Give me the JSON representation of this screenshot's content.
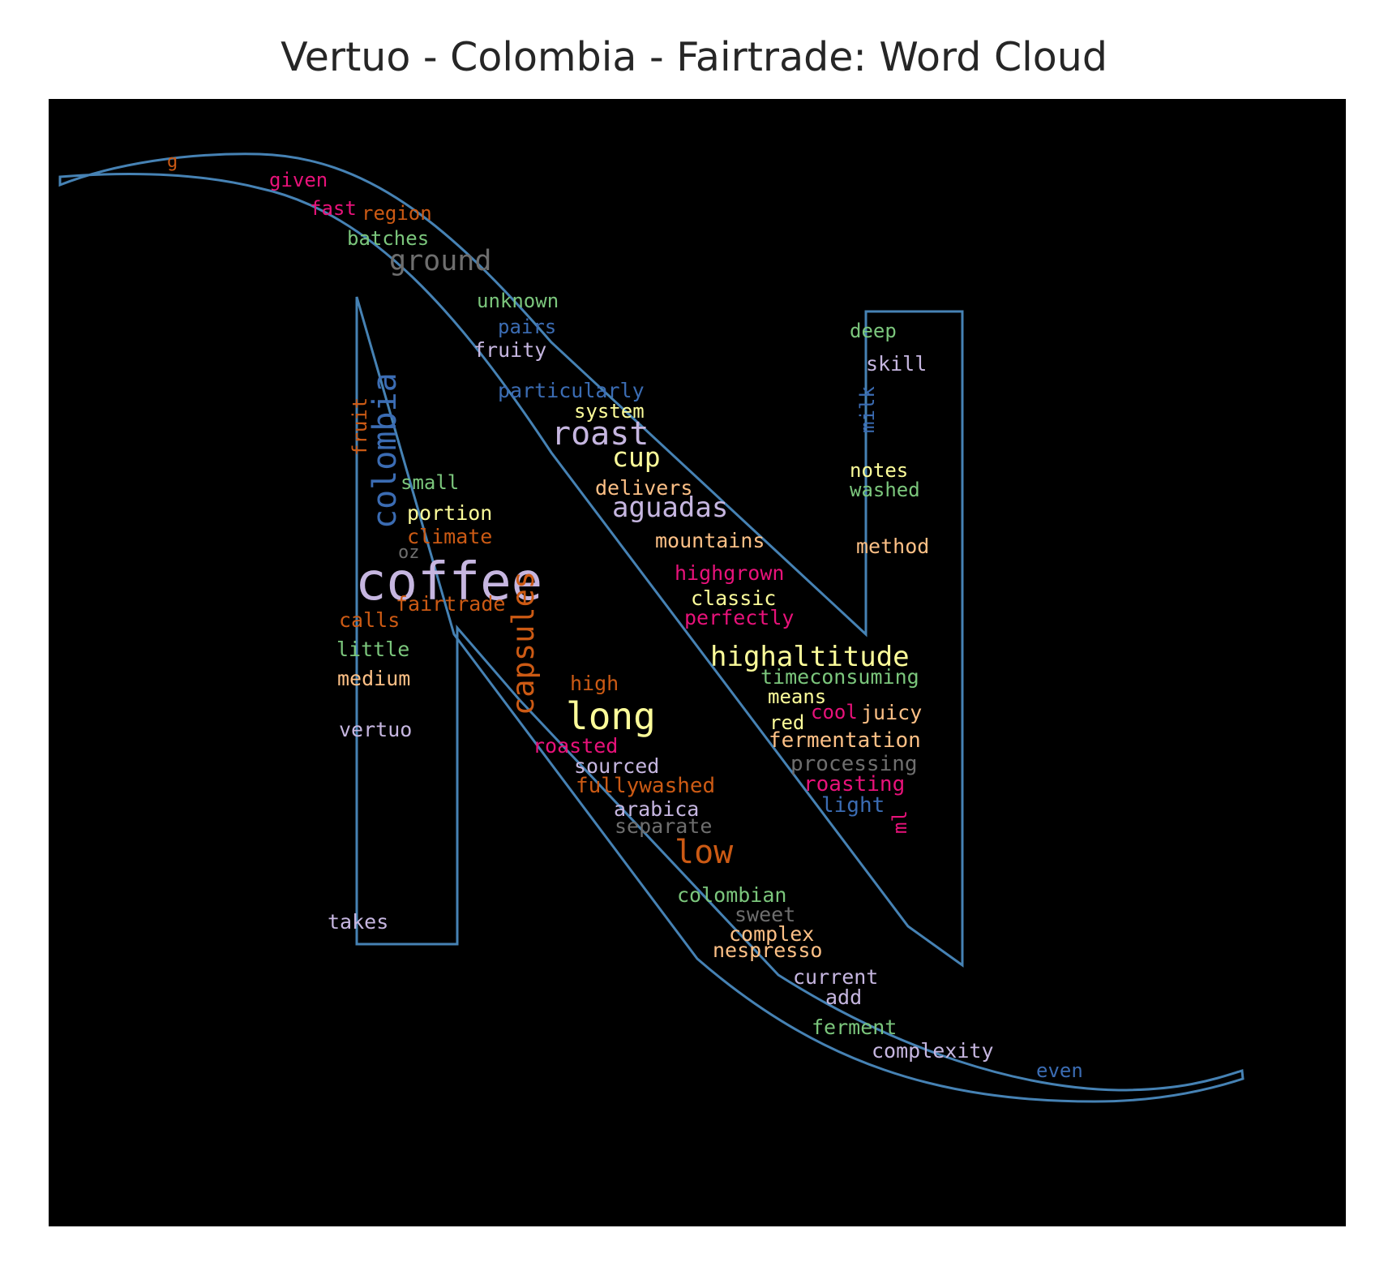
{
  "title": "Vertuo - Colombia - Fairtrade: Word Cloud",
  "colors": {
    "background": "#000000",
    "outline": "#4682b4",
    "palette": {
      "orange": "#cc5a14",
      "pink": "#e8127a",
      "green": "#7bc67c",
      "gray": "#6e6e6e",
      "blue": "#3b6cb3",
      "lavender": "#c6b6e0",
      "yellow": "#fdfd9a",
      "peach": "#fdc086"
    }
  },
  "words": [
    {
      "text": "g",
      "color": "orange",
      "size": 22
    },
    {
      "text": "given",
      "color": "pink",
      "size": 24
    },
    {
      "text": "fast",
      "color": "pink",
      "size": 24
    },
    {
      "text": "region",
      "color": "orange",
      "size": 24
    },
    {
      "text": "batches",
      "color": "green",
      "size": 24
    },
    {
      "text": "ground",
      "color": "gray",
      "size": 35
    },
    {
      "text": "unknown",
      "color": "green",
      "size": 24
    },
    {
      "text": "pairs",
      "color": "blue",
      "size": 24
    },
    {
      "text": "fruity",
      "color": "lavender",
      "size": 25
    },
    {
      "text": "particularly",
      "color": "blue",
      "size": 25
    },
    {
      "text": "system",
      "color": "yellow",
      "size": 24
    },
    {
      "text": "roast",
      "color": "lavender",
      "size": 40
    },
    {
      "text": "cup",
      "color": "yellow",
      "size": 33
    },
    {
      "text": "delivers",
      "color": "peach",
      "size": 25
    },
    {
      "text": "aguadas",
      "color": "lavender",
      "size": 34
    },
    {
      "text": "mountains",
      "color": "peach",
      "size": 25
    },
    {
      "text": "highgrown",
      "color": "pink",
      "size": 25
    },
    {
      "text": "classic",
      "color": "yellow",
      "size": 25
    },
    {
      "text": "perfectly",
      "color": "pink",
      "size": 25
    },
    {
      "text": "highaltitude",
      "color": "yellow",
      "size": 34
    },
    {
      "text": "timeconsuming",
      "color": "green",
      "size": 25
    },
    {
      "text": "means",
      "color": "yellow",
      "size": 24
    },
    {
      "text": "cool",
      "color": "pink",
      "size": 24
    },
    {
      "text": "juicy",
      "color": "peach",
      "size": 25
    },
    {
      "text": "red",
      "color": "yellow",
      "size": 24
    },
    {
      "text": "fermentation",
      "color": "peach",
      "size": 26
    },
    {
      "text": "processing",
      "color": "gray",
      "size": 26
    },
    {
      "text": "roasting",
      "color": "pink",
      "size": 26
    },
    {
      "text": "light",
      "color": "blue",
      "size": 26
    },
    {
      "text": "ml",
      "color": "pink",
      "size": 24
    },
    {
      "text": "deep",
      "color": "green",
      "size": 24
    },
    {
      "text": "skill",
      "color": "lavender",
      "size": 25
    },
    {
      "text": "milk",
      "color": "blue",
      "size": 24
    },
    {
      "text": "notes",
      "color": "yellow",
      "size": 24
    },
    {
      "text": "washed",
      "color": "green",
      "size": 24
    },
    {
      "text": "method",
      "color": "peach",
      "size": 25
    },
    {
      "text": "colombia",
      "color": "blue",
      "size": 40
    },
    {
      "text": "fruit",
      "color": "orange",
      "size": 24
    },
    {
      "text": "small",
      "color": "green",
      "size": 24
    },
    {
      "text": "portion",
      "color": "yellow",
      "size": 25
    },
    {
      "text": "climate",
      "color": "orange",
      "size": 25
    },
    {
      "text": "oz",
      "color": "gray",
      "size": 22
    },
    {
      "text": "coffee",
      "color": "lavender",
      "size": 64
    },
    {
      "text": "fairtrade",
      "color": "orange",
      "size": 25
    },
    {
      "text": "calls",
      "color": "orange",
      "size": 25
    },
    {
      "text": "little",
      "color": "green",
      "size": 25
    },
    {
      "text": "medium",
      "color": "peach",
      "size": 25
    },
    {
      "text": "vertuo",
      "color": "lavender",
      "size": 25
    },
    {
      "text": "capsules",
      "color": "orange",
      "size": 37
    },
    {
      "text": "high",
      "color": "orange",
      "size": 25
    },
    {
      "text": "long",
      "color": "yellow",
      "size": 46
    },
    {
      "text": "roasted",
      "color": "pink",
      "size": 25
    },
    {
      "text": "sourced",
      "color": "lavender",
      "size": 25
    },
    {
      "text": "fullywashed",
      "color": "orange",
      "size": 26
    },
    {
      "text": "arabica",
      "color": "lavender",
      "size": 25
    },
    {
      "text": "separate",
      "color": "gray",
      "size": 25
    },
    {
      "text": "low",
      "color": "orange",
      "size": 40
    },
    {
      "text": "takes",
      "color": "lavender",
      "size": 25
    },
    {
      "text": "colombian",
      "color": "green",
      "size": 25
    },
    {
      "text": "sweet",
      "color": "gray",
      "size": 25
    },
    {
      "text": "complex",
      "color": "peach",
      "size": 25
    },
    {
      "text": "nespresso",
      "color": "peach",
      "size": 25
    },
    {
      "text": "current",
      "color": "lavender",
      "size": 25
    },
    {
      "text": "add",
      "color": "lavender",
      "size": 25
    },
    {
      "text": "ferment",
      "color": "green",
      "size": 25
    },
    {
      "text": "complexity",
      "color": "lavender",
      "size": 25
    },
    {
      "text": "even",
      "color": "blue",
      "size": 24
    }
  ]
}
